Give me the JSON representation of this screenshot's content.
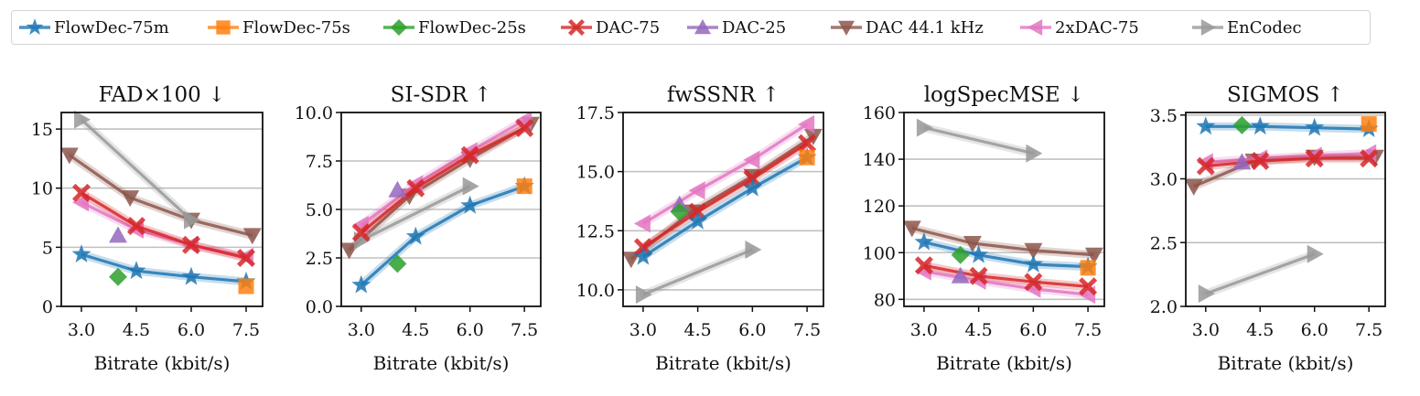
{
  "legend": {
    "placement": "top-center",
    "entries": [
      {
        "name": "FlowDec-75m",
        "color": "#1f77b4",
        "marker": "star"
      },
      {
        "name": "FlowDec-75s",
        "color": "#ff7f0e",
        "marker": "square"
      },
      {
        "name": "FlowDec-25s",
        "color": "#2ca02c",
        "marker": "diamond"
      },
      {
        "name": "DAC-75",
        "color": "#d62728",
        "marker": "x-filled"
      },
      {
        "name": "DAC-25",
        "color": "#9467bd",
        "marker": "triangle-up"
      },
      {
        "name": "DAC 44.1 kHz",
        "color": "#8c564b",
        "marker": "triangle-down"
      },
      {
        "name": "2xDAC-75",
        "color": "#e377c2",
        "marker": "triangle-left"
      },
      {
        "name": "EnCodec",
        "color": "#999999",
        "marker": "triangle-right"
      }
    ]
  },
  "chart_data": [
    {
      "type": "line",
      "title": "FAD×100 ↓",
      "xlabel": "Bitrate (kbit/s)",
      "ylabel": "",
      "xlim": [
        2.45,
        7.95
      ],
      "ylim": [
        0,
        16.4
      ],
      "xticks": [
        "3.0",
        "4.5",
        "6.0",
        "7.5"
      ],
      "yticks": [
        0,
        5,
        10,
        15
      ],
      "ytick_labels": [
        "0",
        "5",
        "10",
        "15"
      ],
      "grid": "y",
      "series": [
        {
          "name": "DAC 44.1 kHz",
          "x": [
            2.67,
            4.33,
            6.0,
            7.67
          ],
          "y": [
            12.8,
            9.2,
            7.3,
            6.0
          ]
        },
        {
          "name": "EnCodec",
          "x": [
            3.0,
            6.0
          ],
          "y": [
            15.8,
            7.3
          ]
        },
        {
          "name": "2xDAC-75",
          "x": [
            3.0,
            4.5,
            6.0,
            7.5
          ],
          "y": [
            8.8,
            6.5,
            5.2,
            4.2
          ]
        },
        {
          "name": "DAC-75",
          "x": [
            3.0,
            4.5,
            6.0,
            7.5
          ],
          "y": [
            9.6,
            6.8,
            5.2,
            4.1
          ]
        },
        {
          "name": "DAC-25",
          "x": [
            4.0
          ],
          "y": [
            6.0
          ]
        },
        {
          "name": "FlowDec-75m",
          "x": [
            3.0,
            4.5,
            6.0,
            7.5
          ],
          "y": [
            4.4,
            3.0,
            2.5,
            2.1
          ]
        },
        {
          "name": "FlowDec-25s",
          "x": [
            4.0
          ],
          "y": [
            2.5
          ]
        },
        {
          "name": "FlowDec-75s",
          "x": [
            7.5
          ],
          "y": [
            1.7
          ]
        }
      ]
    },
    {
      "type": "line",
      "title": "SI-SDR ↑",
      "xlabel": "Bitrate (kbit/s)",
      "ylabel": "",
      "xlim": [
        2.45,
        7.95
      ],
      "ylim": [
        0,
        10.0
      ],
      "xticks": [
        "3.0",
        "4.5",
        "6.0",
        "7.5"
      ],
      "yticks": [
        0,
        2.5,
        5,
        7.5,
        10
      ],
      "ytick_labels": [
        "0.0",
        "2.5",
        "5.0",
        "7.5",
        "10.0"
      ],
      "grid": "y",
      "series": [
        {
          "name": "DAC 44.1 kHz",
          "x": [
            2.67,
            4.33,
            6.0,
            7.67
          ],
          "y": [
            2.9,
            5.7,
            7.6,
            9.4
          ]
        },
        {
          "name": "EnCodec",
          "x": [
            3.0,
            6.0
          ],
          "y": [
            3.4,
            6.2
          ]
        },
        {
          "name": "2xDAC-75",
          "x": [
            3.0,
            4.5,
            6.0,
            7.5
          ],
          "y": [
            4.2,
            6.3,
            8.0,
            9.6
          ]
        },
        {
          "name": "DAC-75",
          "x": [
            3.0,
            4.5,
            6.0,
            7.5
          ],
          "y": [
            3.8,
            6.1,
            7.8,
            9.2
          ]
        },
        {
          "name": "DAC-25",
          "x": [
            4.0
          ],
          "y": [
            6.0
          ]
        },
        {
          "name": "FlowDec-75m",
          "x": [
            3.0,
            4.5,
            6.0,
            7.5
          ],
          "y": [
            1.1,
            3.6,
            5.2,
            6.2
          ]
        },
        {
          "name": "FlowDec-25s",
          "x": [
            4.0
          ],
          "y": [
            2.2
          ]
        },
        {
          "name": "FlowDec-75s",
          "x": [
            7.5
          ],
          "y": [
            6.2
          ]
        }
      ]
    },
    {
      "type": "line",
      "title": "fwSSNR ↑",
      "xlabel": "Bitrate (kbit/s)",
      "ylabel": "",
      "xlim": [
        2.45,
        7.95
      ],
      "ylim": [
        9.3,
        17.5
      ],
      "xticks": [
        "3.0",
        "4.5",
        "6.0",
        "7.5"
      ],
      "yticks": [
        10,
        12.5,
        15,
        17.5
      ],
      "ytick_labels": [
        "10.0",
        "12.5",
        "15.0",
        "17.5"
      ],
      "grid": "y",
      "series": [
        {
          "name": "DAC 44.1 kHz",
          "x": [
            2.67,
            4.33,
            6.0,
            7.67
          ],
          "y": [
            11.3,
            13.3,
            14.8,
            16.5
          ]
        },
        {
          "name": "EnCodec",
          "x": [
            3.0,
            6.0
          ],
          "y": [
            9.8,
            11.7
          ]
        },
        {
          "name": "2xDAC-75",
          "x": [
            3.0,
            4.5,
            6.0,
            7.5
          ],
          "y": [
            12.8,
            14.2,
            15.5,
            17.0
          ]
        },
        {
          "name": "DAC-75",
          "x": [
            3.0,
            4.5,
            6.0,
            7.5
          ],
          "y": [
            11.8,
            13.3,
            14.7,
            16.2
          ]
        },
        {
          "name": "DAC-25",
          "x": [
            4.0
          ],
          "y": [
            13.6
          ]
        },
        {
          "name": "FlowDec-75m",
          "x": [
            3.0,
            4.5,
            6.0,
            7.5
          ],
          "y": [
            11.4,
            12.9,
            14.3,
            15.6
          ]
        },
        {
          "name": "FlowDec-25s",
          "x": [
            4.0
          ],
          "y": [
            13.3
          ]
        },
        {
          "name": "FlowDec-75s",
          "x": [
            7.5
          ],
          "y": [
            15.6
          ]
        }
      ]
    },
    {
      "type": "line",
      "title": "logSpecMSE ↓",
      "xlabel": "Bitrate (kbit/s)",
      "ylabel": "",
      "xlim": [
        2.45,
        7.95
      ],
      "ylim": [
        77,
        160
      ],
      "xticks": [
        "3.0",
        "4.5",
        "6.0",
        "7.5"
      ],
      "yticks": [
        80,
        100,
        120,
        140,
        160
      ],
      "ytick_labels": [
        "80",
        "100",
        "120",
        "140",
        "160"
      ],
      "grid": "y",
      "series": [
        {
          "name": "DAC 44.1 kHz",
          "x": [
            2.67,
            4.33,
            6.0,
            7.67
          ],
          "y": [
            110.5,
            104,
            101,
            99
          ]
        },
        {
          "name": "EnCodec",
          "x": [
            3.0,
            6.0
          ],
          "y": [
            153.5,
            142.5
          ]
        },
        {
          "name": "2xDAC-75",
          "x": [
            3.0,
            4.5,
            6.0,
            7.5
          ],
          "y": [
            92,
            88,
            84.5,
            82
          ]
        },
        {
          "name": "DAC-75",
          "x": [
            3.0,
            4.5,
            6.0,
            7.5
          ],
          "y": [
            94.5,
            90,
            87.5,
            85.5
          ]
        },
        {
          "name": "DAC-25",
          "x": [
            4.0
          ],
          "y": [
            90
          ]
        },
        {
          "name": "FlowDec-75m",
          "x": [
            3.0,
            4.5,
            6.0,
            7.5
          ],
          "y": [
            104.5,
            99,
            95,
            94
          ]
        },
        {
          "name": "FlowDec-25s",
          "x": [
            4.0
          ],
          "y": [
            99
          ]
        },
        {
          "name": "FlowDec-75s",
          "x": [
            7.5
          ],
          "y": [
            93.5
          ]
        }
      ]
    },
    {
      "type": "line",
      "title": "SIGMOS ↑",
      "xlabel": "Bitrate (kbit/s)",
      "ylabel": "",
      "xlim": [
        2.45,
        7.95
      ],
      "ylim": [
        2.0,
        3.52
      ],
      "xticks": [
        "3.0",
        "4.5",
        "6.0",
        "7.5"
      ],
      "yticks": [
        2.0,
        2.5,
        3.0,
        3.5
      ],
      "ytick_labels": [
        "2.0",
        "2.5",
        "3.0",
        "3.5"
      ],
      "grid": "y",
      "series": [
        {
          "name": "DAC 44.1 kHz",
          "x": [
            2.67,
            4.33,
            6.0,
            7.67
          ],
          "y": [
            2.94,
            3.14,
            3.17,
            3.17
          ]
        },
        {
          "name": "EnCodec",
          "x": [
            3.0,
            6.0
          ],
          "y": [
            2.1,
            2.41
          ]
        },
        {
          "name": "2xDAC-75",
          "x": [
            3.0,
            4.5,
            6.0,
            7.5
          ],
          "y": [
            3.13,
            3.16,
            3.18,
            3.2
          ]
        },
        {
          "name": "DAC-75",
          "x": [
            3.0,
            4.5,
            6.0,
            7.5
          ],
          "y": [
            3.1,
            3.14,
            3.16,
            3.16
          ]
        },
        {
          "name": "DAC-25",
          "x": [
            4.0
          ],
          "y": [
            3.13
          ]
        },
        {
          "name": "FlowDec-75m",
          "x": [
            3.0,
            4.5,
            6.0,
            7.5
          ],
          "y": [
            3.41,
            3.41,
            3.4,
            3.39
          ]
        },
        {
          "name": "FlowDec-25s",
          "x": [
            4.0
          ],
          "y": [
            3.42
          ]
        },
        {
          "name": "FlowDec-75s",
          "x": [
            7.5
          ],
          "y": [
            3.43
          ]
        }
      ]
    }
  ]
}
